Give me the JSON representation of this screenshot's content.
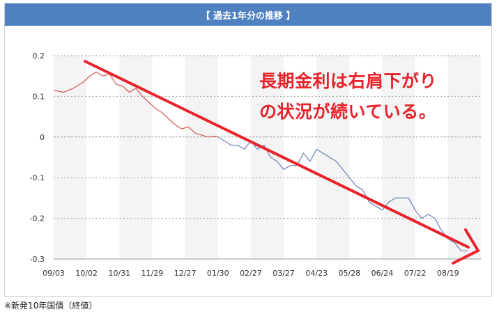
{
  "chart_data": {
    "type": "line",
    "title": "【 過去1年分の推移 】",
    "xlabel": "",
    "ylabel": "",
    "categories": [
      "09/03",
      "10/02",
      "10/31",
      "11/29",
      "12/27",
      "01/30",
      "02/27",
      "03/27",
      "04/23",
      "05/28",
      "06/24",
      "07/22",
      "08/19"
    ],
    "ylim": [
      -0.3,
      0.2
    ],
    "yticks": [
      0.2,
      0.1,
      0,
      -0.1,
      -0.2,
      -0.3
    ],
    "yticklabels": [
      "0.2",
      "0.1",
      "0",
      "-0.1",
      "-0.2",
      "-0.3"
    ],
    "grid": true,
    "series": [
      {
        "color": "#d9534f",
        "x": [
          0,
          0.3,
          0.6,
          0.9,
          1.1,
          1.3,
          1.5,
          1.7,
          1.9,
          2.1,
          2.3,
          2.5,
          2.7,
          2.9,
          3.1,
          3.3,
          3.5,
          3.7,
          3.9,
          4.1,
          4.3,
          4.5,
          4.7,
          4.9,
          5.0
        ],
        "y": [
          0.115,
          0.11,
          0.12,
          0.135,
          0.15,
          0.16,
          0.15,
          0.155,
          0.13,
          0.125,
          0.11,
          0.12,
          0.1,
          0.085,
          0.07,
          0.06,
          0.045,
          0.03,
          0.02,
          0.025,
          0.01,
          0.005,
          0.0,
          0.002,
          0.0
        ]
      },
      {
        "color": "#6a7fb5",
        "x": [
          5.0,
          5.2,
          5.4,
          5.6,
          5.8,
          6.0,
          6.2,
          6.4,
          6.6,
          6.8,
          7.0,
          7.2,
          7.4,
          7.6,
          7.8,
          8.0,
          8.2,
          8.4,
          8.6,
          8.8,
          9.0,
          9.2,
          9.4,
          9.6,
          9.8,
          10.0,
          10.2,
          10.4,
          10.6,
          10.8,
          11.0,
          11.2,
          11.4,
          11.6,
          11.8,
          12.0,
          12.2,
          12.4,
          12.6
        ],
        "y": [
          0.0,
          -0.01,
          -0.02,
          -0.02,
          -0.03,
          -0.01,
          -0.03,
          -0.02,
          -0.05,
          -0.06,
          -0.08,
          -0.07,
          -0.07,
          -0.04,
          -0.06,
          -0.03,
          -0.04,
          -0.05,
          -0.06,
          -0.08,
          -0.1,
          -0.12,
          -0.13,
          -0.16,
          -0.17,
          -0.18,
          -0.16,
          -0.15,
          -0.15,
          -0.15,
          -0.18,
          -0.2,
          -0.19,
          -0.2,
          -0.23,
          -0.25,
          -0.26,
          -0.28,
          -0.28
        ]
      }
    ]
  },
  "annotation": {
    "line1": "長期金利は右肩下がり",
    "line2": "の状況が続いている。",
    "arrow_color": "#e8232a"
  },
  "footnote": "※新発10年国債（終値）"
}
